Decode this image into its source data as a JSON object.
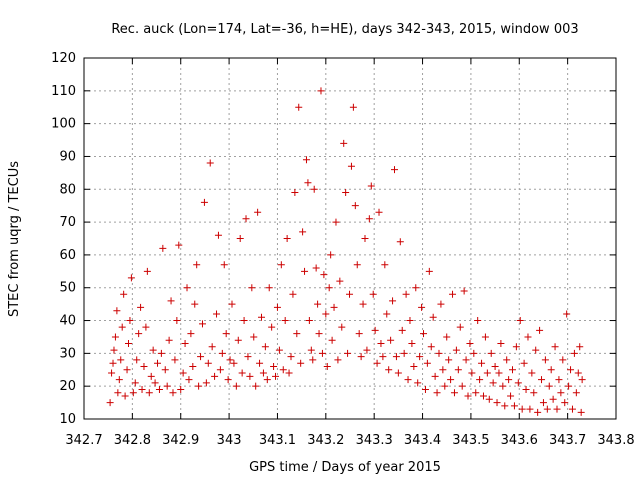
{
  "chart_data": {
    "type": "scatter",
    "title": "Rec. auck (Lon=174, Lat=-36, h=HE), days 342-343, 2015, window 003",
    "xlabel": "GPS time / Days of year 2015",
    "ylabel": "STEC from uqrg / TECUs",
    "xlim": [
      342.7,
      343.8
    ],
    "ylim": [
      10,
      120
    ],
    "x_ticks": [
      "342.7",
      "342.8",
      "342.9",
      "343",
      "343.1",
      "343.2",
      "343.3",
      "343.4",
      "343.5",
      "343.6",
      "343.7",
      "343.8"
    ],
    "y_ticks": [
      "10",
      "20",
      "30",
      "40",
      "50",
      "60",
      "70",
      "80",
      "90",
      "100",
      "110",
      "120"
    ],
    "grid": true,
    "legend": "none",
    "marker": "plus",
    "color": "#cc0000",
    "series": [
      {
        "points": [
          [
            342.754,
            15
          ],
          [
            342.757,
            24
          ],
          [
            342.76,
            27
          ],
          [
            342.762,
            31
          ],
          [
            342.765,
            35
          ],
          [
            342.768,
            43
          ],
          [
            342.77,
            18
          ],
          [
            342.773,
            22
          ],
          [
            342.776,
            28
          ],
          [
            342.779,
            38
          ],
          [
            342.782,
            48
          ],
          [
            342.785,
            17
          ],
          [
            342.789,
            25
          ],
          [
            342.792,
            33
          ],
          [
            342.795,
            40
          ],
          [
            342.798,
            53
          ],
          [
            342.802,
            18
          ],
          [
            342.806,
            21
          ],
          [
            342.809,
            28
          ],
          [
            342.813,
            36
          ],
          [
            342.817,
            44
          ],
          [
            342.82,
            19
          ],
          [
            342.824,
            26
          ],
          [
            342.828,
            38
          ],
          [
            342.831,
            55
          ],
          [
            342.835,
            18
          ],
          [
            342.839,
            23
          ],
          [
            342.843,
            31
          ],
          [
            342.847,
            21
          ],
          [
            342.852,
            27
          ],
          [
            342.856,
            19
          ],
          [
            342.86,
            30
          ],
          [
            342.863,
            62
          ],
          [
            342.868,
            25
          ],
          [
            342.872,
            20
          ],
          [
            342.876,
            34
          ],
          [
            342.88,
            46
          ],
          [
            342.884,
            18
          ],
          [
            342.888,
            28
          ],
          [
            342.892,
            40
          ],
          [
            342.896,
            63
          ],
          [
            342.9,
            19
          ],
          [
            342.905,
            24
          ],
          [
            342.909,
            33
          ],
          [
            342.913,
            50
          ],
          [
            342.917,
            22
          ],
          [
            342.921,
            36
          ],
          [
            342.925,
            26
          ],
          [
            342.929,
            45
          ],
          [
            342.933,
            57
          ],
          [
            342.937,
            20
          ],
          [
            342.941,
            29
          ],
          [
            342.945,
            39
          ],
          [
            342.949,
            76
          ],
          [
            342.953,
            21
          ],
          [
            342.957,
            27
          ],
          [
            342.961,
            88
          ],
          [
            342.965,
            32
          ],
          [
            342.97,
            23
          ],
          [
            342.974,
            42
          ],
          [
            342.978,
            66
          ],
          [
            342.982,
            25
          ],
          [
            342.986,
            30
          ],
          [
            342.99,
            57
          ],
          [
            342.994,
            36
          ],
          [
            342.998,
            22
          ],
          [
            343.002,
            28
          ],
          [
            343.006,
            45
          ],
          [
            343.01,
            27
          ],
          [
            343.015,
            20
          ],
          [
            343.019,
            34
          ],
          [
            343.023,
            65
          ],
          [
            343.027,
            24
          ],
          [
            343.031,
            40
          ],
          [
            343.035,
            71
          ],
          [
            343.039,
            29
          ],
          [
            343.043,
            23
          ],
          [
            343.047,
            50
          ],
          [
            343.051,
            35
          ],
          [
            343.055,
            20
          ],
          [
            343.059,
            73
          ],
          [
            343.063,
            27
          ],
          [
            343.067,
            41
          ],
          [
            343.071,
            24
          ],
          [
            343.075,
            32
          ],
          [
            343.079,
            22
          ],
          [
            343.083,
            50
          ],
          [
            343.088,
            38
          ],
          [
            343.092,
            26
          ],
          [
            343.096,
            23
          ],
          [
            343.1,
            44
          ],
          [
            343.104,
            31
          ],
          [
            343.108,
            57
          ],
          [
            343.112,
            25
          ],
          [
            343.116,
            40
          ],
          [
            343.12,
            65
          ],
          [
            343.124,
            24
          ],
          [
            343.128,
            29
          ],
          [
            343.132,
            48
          ],
          [
            343.136,
            79
          ],
          [
            343.14,
            36
          ],
          [
            343.144,
            105
          ],
          [
            343.148,
            27
          ],
          [
            343.152,
            67
          ],
          [
            343.156,
            55
          ],
          [
            343.16,
            89
          ],
          [
            343.163,
            82
          ],
          [
            343.166,
            40
          ],
          [
            343.17,
            31
          ],
          [
            343.173,
            28
          ],
          [
            343.176,
            80
          ],
          [
            343.18,
            56
          ],
          [
            343.183,
            45
          ],
          [
            343.186,
            36
          ],
          [
            343.19,
            110
          ],
          [
            343.193,
            30
          ],
          [
            343.196,
            54
          ],
          [
            343.2,
            42
          ],
          [
            343.203,
            26
          ],
          [
            343.207,
            50
          ],
          [
            343.21,
            60
          ],
          [
            343.213,
            34
          ],
          [
            343.217,
            44
          ],
          [
            343.221,
            70
          ],
          [
            343.225,
            28
          ],
          [
            343.229,
            52
          ],
          [
            343.233,
            38
          ],
          [
            343.237,
            94
          ],
          [
            343.241,
            79
          ],
          [
            343.245,
            30
          ],
          [
            343.249,
            48
          ],
          [
            343.253,
            87
          ],
          [
            343.257,
            105
          ],
          [
            343.261,
            75
          ],
          [
            343.265,
            57
          ],
          [
            343.269,
            36
          ],
          [
            343.273,
            29
          ],
          [
            343.277,
            45
          ],
          [
            343.281,
            65
          ],
          [
            343.285,
            31
          ],
          [
            343.29,
            71
          ],
          [
            343.294,
            81
          ],
          [
            343.298,
            48
          ],
          [
            343.302,
            37
          ],
          [
            343.306,
            27
          ],
          [
            343.31,
            73
          ],
          [
            343.314,
            33
          ],
          [
            343.318,
            29
          ],
          [
            343.322,
            57
          ],
          [
            343.326,
            42
          ],
          [
            343.33,
            25
          ],
          [
            343.334,
            34
          ],
          [
            343.338,
            46
          ],
          [
            343.342,
            86
          ],
          [
            343.346,
            29
          ],
          [
            343.35,
            24
          ],
          [
            343.354,
            64
          ],
          [
            343.358,
            37
          ],
          [
            343.362,
            30
          ],
          [
            343.366,
            48
          ],
          [
            343.37,
            22
          ],
          [
            343.374,
            40
          ],
          [
            343.378,
            33
          ],
          [
            343.382,
            26
          ],
          [
            343.386,
            50
          ],
          [
            343.39,
            21
          ],
          [
            343.394,
            29
          ],
          [
            343.398,
            44
          ],
          [
            343.402,
            36
          ],
          [
            343.406,
            19
          ],
          [
            343.41,
            27
          ],
          [
            343.414,
            55
          ],
          [
            343.418,
            32
          ],
          [
            343.422,
            41
          ],
          [
            343.426,
            23
          ],
          [
            343.43,
            18
          ],
          [
            343.434,
            30
          ],
          [
            343.438,
            45
          ],
          [
            343.442,
            25
          ],
          [
            343.446,
            20
          ],
          [
            343.45,
            35
          ],
          [
            343.454,
            28
          ],
          [
            343.458,
            22
          ],
          [
            343.462,
            48
          ],
          [
            343.466,
            18
          ],
          [
            343.47,
            31
          ],
          [
            343.474,
            25
          ],
          [
            343.478,
            38
          ],
          [
            343.482,
            20
          ],
          [
            343.486,
            49
          ],
          [
            343.49,
            28
          ],
          [
            343.494,
            17
          ],
          [
            343.498,
            33
          ],
          [
            343.502,
            24
          ],
          [
            343.506,
            30
          ],
          [
            343.51,
            18
          ],
          [
            343.514,
            40
          ],
          [
            343.518,
            22
          ],
          [
            343.522,
            27
          ],
          [
            343.526,
            17
          ],
          [
            343.53,
            35
          ],
          [
            343.534,
            24
          ],
          [
            343.538,
            16
          ],
          [
            343.542,
            30
          ],
          [
            343.546,
            21
          ],
          [
            343.55,
            26
          ],
          [
            343.554,
            15
          ],
          [
            343.558,
            24
          ],
          [
            343.562,
            33
          ],
          [
            343.566,
            20
          ],
          [
            343.57,
            14
          ],
          [
            343.574,
            28
          ],
          [
            343.578,
            22
          ],
          [
            343.582,
            17
          ],
          [
            343.586,
            25
          ],
          [
            343.59,
            14
          ],
          [
            343.594,
            32
          ],
          [
            343.598,
            21
          ],
          [
            343.602,
            40
          ],
          [
            343.606,
            13
          ],
          [
            343.61,
            27
          ],
          [
            343.614,
            19
          ],
          [
            343.618,
            35
          ],
          [
            343.622,
            13
          ],
          [
            343.626,
            24
          ],
          [
            343.63,
            18
          ],
          [
            343.634,
            31
          ],
          [
            343.638,
            12
          ],
          [
            343.642,
            37
          ],
          [
            343.646,
            22
          ],
          [
            343.65,
            15
          ],
          [
            343.654,
            28
          ],
          [
            343.658,
            13
          ],
          [
            343.662,
            20
          ],
          [
            343.666,
            25
          ],
          [
            343.67,
            16
          ],
          [
            343.674,
            32
          ],
          [
            343.678,
            13
          ],
          [
            343.682,
            22
          ],
          [
            343.686,
            18
          ],
          [
            343.69,
            28
          ],
          [
            343.694,
            15
          ],
          [
            343.698,
            42
          ],
          [
            343.702,
            20
          ],
          [
            343.706,
            25
          ],
          [
            343.71,
            13
          ],
          [
            343.714,
            30
          ],
          [
            343.718,
            18
          ],
          [
            343.722,
            24
          ],
          [
            343.725,
            32
          ],
          [
            343.728,
            12
          ],
          [
            343.73,
            22
          ]
        ]
      }
    ]
  }
}
